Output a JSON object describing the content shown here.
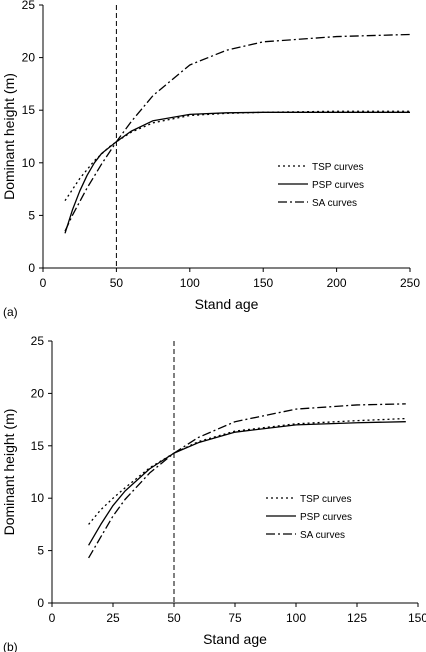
{
  "chart_data": [
    {
      "type": "line",
      "panel_label": "(a)",
      "xlabel": "Stand age",
      "ylabel": "Dominant height (m)",
      "xlim": [
        0,
        250
      ],
      "ylim": [
        0,
        25
      ],
      "xticks": [
        0,
        50,
        100,
        150,
        200,
        250
      ],
      "yticks": [
        0,
        5,
        10,
        15,
        20,
        25
      ],
      "reference_line_x": 50,
      "legend_position": "middle-right",
      "series": [
        {
          "name": "TSP curves",
          "style": "dotted",
          "x": [
            15,
            25,
            35,
            45,
            50,
            60,
            75,
            100,
            125,
            150,
            200,
            250
          ],
          "y": [
            6.4,
            8.5,
            10.2,
            11.5,
            12.0,
            12.9,
            13.8,
            14.5,
            14.7,
            14.8,
            14.9,
            14.9
          ]
        },
        {
          "name": "PSP curves",
          "style": "solid",
          "x": [
            15,
            20,
            25,
            30,
            35,
            40,
            50,
            60,
            75,
            100,
            125,
            150,
            200,
            250
          ],
          "y": [
            3.3,
            5.5,
            7.3,
            8.8,
            10.0,
            10.9,
            12.0,
            13.0,
            14.0,
            14.6,
            14.75,
            14.8,
            14.8,
            14.8
          ]
        },
        {
          "name": "SA curves",
          "style": "dash-dot",
          "x": [
            15,
            20,
            30,
            40,
            50,
            60,
            75,
            100,
            125,
            150,
            200,
            250
          ],
          "y": [
            3.5,
            5.0,
            7.6,
            9.9,
            12.0,
            13.9,
            16.4,
            19.3,
            20.7,
            21.5,
            22.0,
            22.2
          ]
        }
      ]
    },
    {
      "type": "line",
      "panel_label": "(b)",
      "xlabel": "Stand age",
      "ylabel": "Dominant height (m)",
      "xlim": [
        0,
        150
      ],
      "ylim": [
        0,
        25
      ],
      "xticks": [
        0,
        25,
        50,
        75,
        100,
        125,
        150
      ],
      "yticks": [
        0,
        5,
        10,
        15,
        20,
        25
      ],
      "reference_line_x": 50,
      "legend_position": "middle-right",
      "series": [
        {
          "name": "TSP curves",
          "style": "dotted",
          "x": [
            15,
            20,
            25,
            30,
            40,
            50,
            60,
            75,
            100,
            125,
            145
          ],
          "y": [
            7.5,
            8.9,
            10.0,
            11.0,
            12.9,
            14.3,
            15.4,
            16.4,
            17.1,
            17.4,
            17.6
          ]
        },
        {
          "name": "PSP curves",
          "style": "solid",
          "x": [
            15,
            20,
            25,
            30,
            40,
            50,
            60,
            75,
            100,
            125,
            145
          ],
          "y": [
            5.5,
            7.5,
            9.3,
            10.7,
            12.8,
            14.3,
            15.3,
            16.3,
            17.0,
            17.2,
            17.3
          ]
        },
        {
          "name": "SA curves",
          "style": "dash-dot",
          "x": [
            15,
            20,
            25,
            30,
            40,
            50,
            60,
            75,
            100,
            125,
            145
          ],
          "y": [
            4.3,
            6.3,
            8.3,
            9.9,
            12.4,
            14.3,
            15.8,
            17.3,
            18.5,
            18.9,
            19.0
          ]
        }
      ]
    }
  ]
}
